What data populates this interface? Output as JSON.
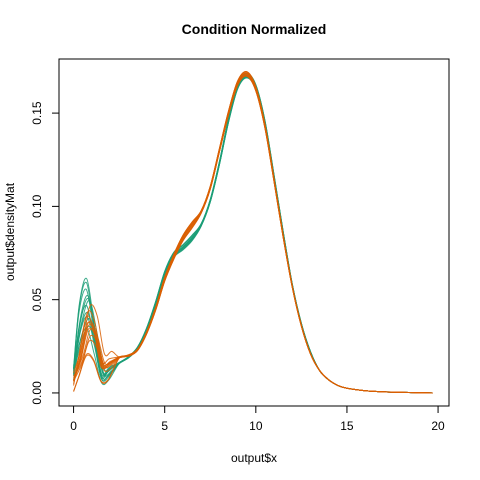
{
  "chart_data": {
    "type": "line",
    "title": "Condition Normalized",
    "xlabel": "output$x",
    "ylabel": "output$densityMat",
    "xlim": [
      -0.8,
      20.6
    ],
    "ylim": [
      -0.007,
      0.179
    ],
    "x_ticks": [
      0,
      5,
      10,
      15,
      20
    ],
    "y_ticks": [
      0.0,
      0.05,
      0.1,
      0.15
    ],
    "x_tick_labels": [
      "0",
      "5",
      "10",
      "15",
      "20"
    ],
    "y_tick_labels": [
      "0.00",
      "0.05",
      "0.10",
      "0.15"
    ],
    "grid": false,
    "legend": "none",
    "colors": {
      "teal": "#1B9E77",
      "orange": "#D95F02"
    },
    "series_groups": [
      {
        "color": "teal",
        "count": 12,
        "x": [
          0.0,
          0.4,
          0.8,
          1.2,
          1.6,
          2.0,
          2.5,
          3.0,
          3.5,
          4.0,
          4.5,
          5.0,
          5.5,
          6.0,
          6.5,
          7.0,
          7.5,
          8.0,
          8.5,
          9.0,
          9.5,
          10.0,
          10.5,
          11.0,
          11.5,
          12.0,
          12.5,
          13.0,
          13.5,
          14.0,
          14.5,
          15.0,
          16.0,
          17.0,
          18.0,
          19.7
        ],
        "y": [
          0.012,
          0.038,
          0.048,
          0.03,
          0.01,
          0.012,
          0.016,
          0.019,
          0.024,
          0.034,
          0.048,
          0.064,
          0.074,
          0.078,
          0.083,
          0.09,
          0.103,
          0.123,
          0.146,
          0.164,
          0.17,
          0.164,
          0.145,
          0.116,
          0.086,
          0.058,
          0.037,
          0.022,
          0.012,
          0.007,
          0.004,
          0.0025,
          0.0012,
          0.0006,
          0.0003,
          0.0
        ]
      },
      {
        "color": "orange",
        "count": 12,
        "x": [
          0.0,
          0.4,
          0.8,
          1.2,
          1.6,
          2.0,
          2.5,
          3.0,
          3.5,
          4.0,
          4.5,
          5.0,
          5.5,
          6.0,
          6.5,
          7.0,
          7.5,
          8.0,
          8.5,
          9.0,
          9.5,
          10.0,
          10.5,
          11.0,
          11.5,
          12.0,
          12.5,
          13.0,
          13.5,
          14.0,
          14.5,
          15.0,
          16.0,
          17.0,
          18.0,
          19.7
        ],
        "y": [
          0.006,
          0.018,
          0.034,
          0.03,
          0.014,
          0.015,
          0.019,
          0.02,
          0.023,
          0.032,
          0.045,
          0.061,
          0.073,
          0.083,
          0.09,
          0.097,
          0.11,
          0.13,
          0.15,
          0.166,
          0.171,
          0.163,
          0.143,
          0.114,
          0.084,
          0.057,
          0.036,
          0.021,
          0.012,
          0.007,
          0.004,
          0.0025,
          0.0012,
          0.0006,
          0.0003,
          0.0
        ]
      }
    ]
  }
}
